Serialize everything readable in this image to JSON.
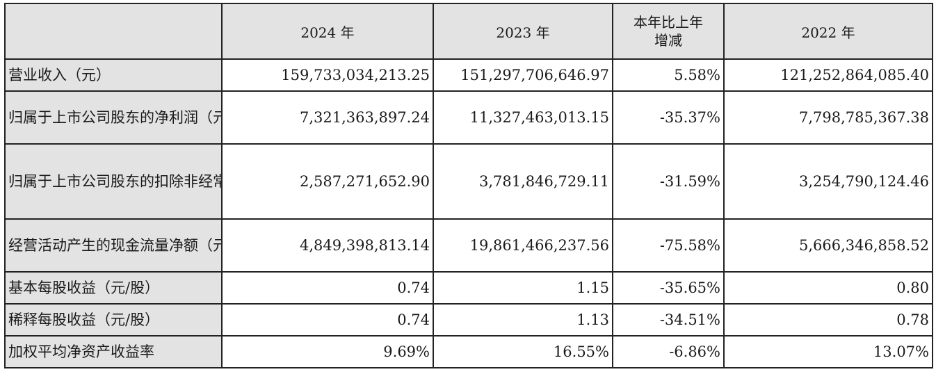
{
  "table": {
    "headers": {
      "corner": "",
      "y2024": "2024 年",
      "y2023": "2023 年",
      "change_line1": "本年比上年",
      "change_line2": "增减",
      "y2022": "2022 年"
    },
    "rows": [
      {
        "label": "营业收入（元）",
        "v2024": "159,733,034,213.25",
        "v2023": "151,297,706,646.97",
        "change": "5.58%",
        "v2022": "121,252,864,085.40"
      },
      {
        "label": "归属于上市公司股东的净利润（元）",
        "v2024": "7,321,363,897.24",
        "v2023": "11,327,463,013.15",
        "change": "-35.37%",
        "v2022": "7,798,785,367.38"
      },
      {
        "label": "归属于上市公司股东的扣除非经常性损益的净利润（元）",
        "v2024": "2,587,271,652.90",
        "v2023": "3,781,846,729.11",
        "change": "-31.59%",
        "v2022": "3,254,790,124.46"
      },
      {
        "label": "经营活动产生的现金流量净额（元）",
        "v2024": "4,849,398,813.14",
        "v2023": "19,861,466,237.56",
        "change": "-75.58%",
        "v2022": "5,666,346,858.52"
      },
      {
        "label": "基本每股收益（元/股）",
        "v2024": "0.74",
        "v2023": "1.15",
        "change": "-35.65%",
        "v2022": "0.80"
      },
      {
        "label": "稀释每股收益（元/股）",
        "v2024": "0.74",
        "v2023": "1.13",
        "change": "-34.51%",
        "v2022": "0.78"
      },
      {
        "label": "加权平均净资产收益率",
        "v2024": "9.69%",
        "v2023": "16.55%",
        "change": "-6.86%",
        "v2022": "13.07%"
      }
    ]
  }
}
